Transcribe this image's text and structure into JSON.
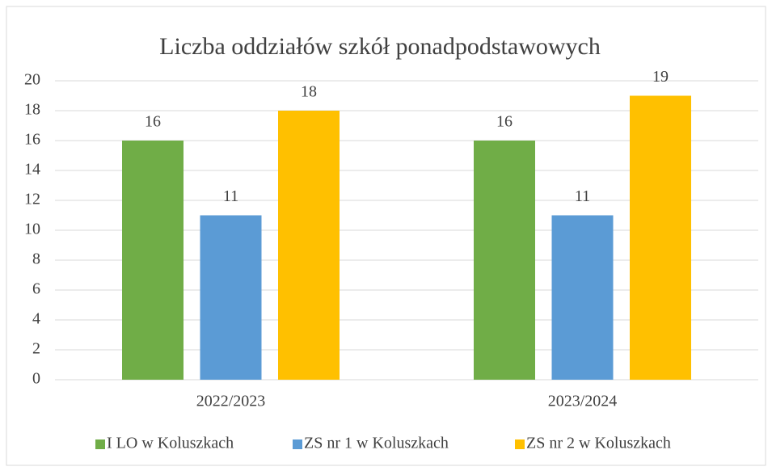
{
  "chart_data": {
    "type": "bar",
    "title": "Liczba oddziałów szkół ponadpodstawowych",
    "categories": [
      "2022/2023",
      "2023/2024"
    ],
    "series": [
      {
        "name": "I LO w Koluszkach",
        "color": "#70ad47",
        "values": [
          16,
          16
        ]
      },
      {
        "name": "ZS nr 1 w Koluszkach",
        "color": "#5b9bd5",
        "values": [
          11,
          11
        ]
      },
      {
        "name": "ZS nr 2 w Koluszkach",
        "color": "#ffc000",
        "values": [
          18,
          19
        ]
      }
    ],
    "ylim": [
      0,
      20
    ],
    "yticks": [
      0,
      2,
      4,
      6,
      8,
      10,
      12,
      14,
      16,
      18,
      20
    ],
    "grid": true,
    "legend": "bottom",
    "data_labels": true
  }
}
